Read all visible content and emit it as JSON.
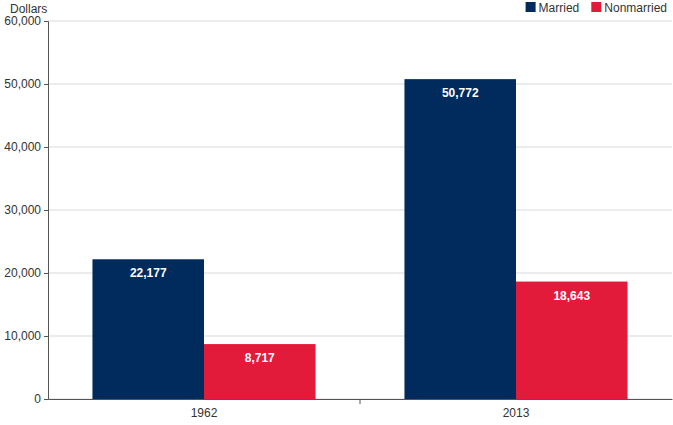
{
  "chart_data": {
    "type": "bar",
    "y_label": "Dollars",
    "categories": [
      "1962",
      "2013"
    ],
    "series": [
      {
        "name": "Married",
        "color": "#002b5c",
        "values": [
          22177,
          50772
        ],
        "value_labels": [
          "22,177",
          "50,772"
        ]
      },
      {
        "name": "Nonmarried",
        "color": "#e31b3b",
        "values": [
          8717,
          18643
        ],
        "value_labels": [
          "8,717",
          "18,643"
        ]
      }
    ],
    "ylim": [
      0,
      60000
    ],
    "yticks": [
      0,
      {
        "value": 10000,
        "label": "10,000"
      },
      {
        "value": 20000,
        "label": "20,000"
      },
      {
        "value": 30000,
        "label": "30,000"
      },
      {
        "value": 40000,
        "label": "40,000"
      },
      {
        "value": 50000,
        "label": "50,000"
      },
      {
        "value": 60000,
        "label": "60,000"
      }
    ],
    "grid": true,
    "legend": "top-right",
    "data_labels": true
  }
}
